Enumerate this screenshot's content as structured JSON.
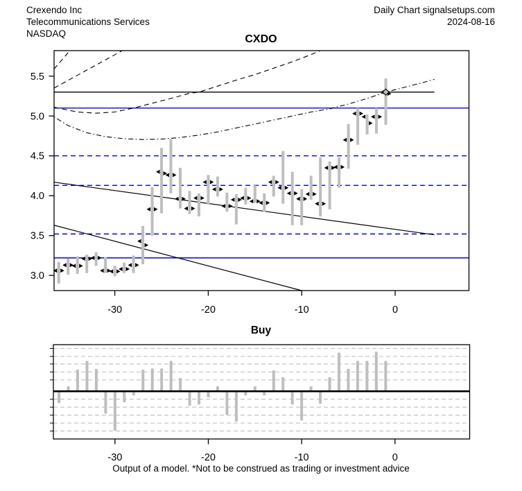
{
  "header": {
    "company": "Crexendo Inc",
    "sector": "Telecommunications Services",
    "exchange": "NASDAQ",
    "chart_type": "Daily Chart signalsetups.com",
    "date": "2024-08-16"
  },
  "footer": {
    "caption": "Output of a model. *Not to be construed as trading or investment advice"
  },
  "colors": {
    "black": "#000000",
    "blue": "#0000ee",
    "bar_gray": "#bebebe",
    "grid_gray": "#c4c4c4"
  },
  "chart_data": [
    {
      "type": "ohlc-bar",
      "title": "CXDO",
      "xlabel": "",
      "ylabel": "",
      "xlim": [
        -36.5,
        7.9
      ],
      "ylim": [
        2.81,
        5.82
      ],
      "xticks": [
        -30,
        -20,
        -10,
        0
      ],
      "yticks": [
        "3.0",
        "3.5",
        "4.0",
        "4.5",
        "5.0",
        "5.5"
      ],
      "ytick_values": [
        3.0,
        3.5,
        4.0,
        4.5,
        5.0,
        5.5
      ],
      "bar_fields": [
        "x",
        "open",
        "high",
        "low",
        "close"
      ],
      "bars": [
        [
          -36,
          3.06,
          3.17,
          2.9,
          3.06
        ],
        [
          -35,
          3.13,
          3.21,
          3.01,
          3.13
        ],
        [
          -34,
          3.12,
          3.24,
          3.02,
          3.12
        ],
        [
          -33,
          3.21,
          3.26,
          3.03,
          3.21
        ],
        [
          -32,
          3.22,
          3.29,
          3.12,
          3.22
        ],
        [
          -31,
          3.06,
          3.23,
          3.03,
          3.06
        ],
        [
          -30,
          3.05,
          3.12,
          2.99,
          3.05
        ],
        [
          -29,
          3.08,
          3.16,
          3.03,
          3.08
        ],
        [
          -28,
          3.13,
          3.25,
          3.03,
          3.13
        ],
        [
          -27,
          3.43,
          3.62,
          3.14,
          3.38
        ],
        [
          -26,
          3.83,
          4.11,
          3.5,
          3.83
        ],
        [
          -25,
          4.3,
          4.6,
          3.78,
          4.28
        ],
        [
          -24,
          4.26,
          4.71,
          4.03,
          4.26
        ],
        [
          -23,
          3.96,
          4.35,
          3.84,
          3.96
        ],
        [
          -22,
          3.84,
          4.06,
          3.77,
          3.84
        ],
        [
          -21,
          3.97,
          4.03,
          3.74,
          3.97
        ],
        [
          -20,
          4.17,
          4.26,
          3.89,
          4.17
        ],
        [
          -19,
          4.08,
          4.24,
          3.99,
          4.08
        ],
        [
          -18,
          3.87,
          4.04,
          3.8,
          3.87
        ],
        [
          -17,
          3.95,
          4.02,
          3.64,
          3.95
        ],
        [
          -16,
          3.97,
          4.1,
          3.89,
          3.97
        ],
        [
          -15,
          3.93,
          4.13,
          3.91,
          3.93
        ],
        [
          -14,
          3.91,
          4.03,
          3.8,
          3.91
        ],
        [
          -13,
          4.17,
          4.25,
          3.99,
          4.17
        ],
        [
          -12,
          4.1,
          4.56,
          3.9,
          4.1
        ],
        [
          -11,
          4.03,
          4.3,
          3.63,
          4.03
        ],
        [
          -10,
          3.96,
          4.08,
          3.63,
          3.96
        ],
        [
          -9,
          4.02,
          4.25,
          3.95,
          4.02
        ],
        [
          -8,
          3.9,
          4.48,
          3.74,
          3.9
        ],
        [
          -7,
          4.35,
          4.43,
          3.83,
          4.35
        ],
        [
          -6,
          4.36,
          4.48,
          4.1,
          4.36
        ],
        [
          -5,
          4.7,
          4.9,
          4.34,
          4.7
        ],
        [
          -4,
          5.03,
          5.1,
          4.64,
          5.03
        ],
        [
          -3,
          4.99,
          5.02,
          4.77,
          4.91
        ],
        [
          -2,
          4.99,
          5.1,
          4.78,
          4.99
        ],
        [
          -1,
          5.3,
          5.47,
          4.89,
          5.28
        ]
      ],
      "marker": {
        "x": -1,
        "price": 5.3,
        "shape": "diamond"
      },
      "h_lines": [
        {
          "price": 5.3,
          "style": "solid",
          "color": "black",
          "x_end": 4.2
        },
        {
          "price": 5.1,
          "style": "solid",
          "color": "blue"
        },
        {
          "price": 3.22,
          "style": "solid",
          "color": "blue"
        },
        {
          "price": 4.5,
          "style": "dashed",
          "color": "blue"
        },
        {
          "price": 4.13,
          "style": "dashed",
          "color": "blue"
        },
        {
          "price": 3.52,
          "style": "dashed",
          "color": "blue"
        }
      ],
      "trend_lines": [
        {
          "x1": -36.5,
          "y1": 4.17,
          "x2": 4.2,
          "y2": 3.51,
          "style": "solid"
        },
        {
          "x1": -36.5,
          "y1": 3.63,
          "x2": -10.0,
          "y2": 2.81,
          "style": "solid"
        }
      ],
      "curves": [
        {
          "style": "dashed",
          "points": [
            [
              -36.5,
              5.11
            ],
            [
              -34,
              5.05
            ],
            [
              -32,
              5.035
            ],
            [
              -30,
              5.05
            ],
            [
              -28,
              5.1
            ],
            [
              -26,
              5.16
            ],
            [
              -24,
              5.22
            ],
            [
              -22,
              5.285
            ],
            [
              -21,
              5.3
            ],
            [
              -19,
              5.375
            ],
            [
              -17,
              5.45
            ],
            [
              -15,
              5.52
            ],
            [
              -13,
              5.6
            ],
            [
              -11,
              5.68
            ],
            [
              -9,
              5.77
            ],
            [
              -8,
              5.82
            ]
          ]
        },
        {
          "style": "dashed",
          "points": [
            [
              -36.5,
              5.35
            ],
            [
              -29.2,
              5.82
            ]
          ]
        },
        {
          "style": "dashed",
          "points": [
            [
              -36.5,
              5.59
            ],
            [
              -34.8,
              5.82
            ]
          ]
        },
        {
          "style": "dashdot",
          "points": [
            [
              -36.5,
              4.99
            ],
            [
              -35,
              4.88
            ],
            [
              -33,
              4.79
            ],
            [
              -31,
              4.74
            ],
            [
              -29,
              4.715
            ],
            [
              -27,
              4.705
            ],
            [
              -25,
              4.71
            ],
            [
              -23,
              4.73
            ],
            [
              -21,
              4.76
            ],
            [
              -19,
              4.8
            ],
            [
              -17,
              4.85
            ],
            [
              -15,
              4.9
            ],
            [
              -13,
              4.95
            ],
            [
              -11,
              5.0
            ],
            [
              -9,
              5.05
            ],
            [
              -7,
              5.09
            ],
            [
              -5,
              5.15
            ],
            [
              -3,
              5.22
            ],
            [
              -1,
              5.3
            ],
            [
              1,
              5.36
            ],
            [
              3,
              5.42
            ],
            [
              4.2,
              5.46
            ]
          ]
        }
      ]
    },
    {
      "type": "bar",
      "title": "Buy",
      "xlabel": "",
      "ylabel": "",
      "xlim": [
        -36.6,
        8.0
      ],
      "ylim": [
        -1.26,
        1.23
      ],
      "xticks": [
        -30,
        -20,
        -10,
        0
      ],
      "x": [
        -36,
        -35,
        -34,
        -33,
        -32,
        -31,
        -30,
        -29,
        -28,
        -27,
        -26,
        -25,
        -24,
        -23,
        -22,
        -21,
        -20,
        -19,
        -18,
        -17,
        -16,
        -15,
        -14,
        -13,
        -12,
        -11,
        -10,
        -9,
        -8,
        -7,
        -6,
        -5,
        -4,
        -3,
        -2,
        -1
      ],
      "values": [
        -0.31,
        0.13,
        0.57,
        0.8,
        0.59,
        -0.59,
        -1.04,
        -0.29,
        -0.11,
        0.57,
        0.6,
        0.6,
        0.8,
        0.35,
        -0.38,
        -0.35,
        -0.16,
        0.13,
        -0.62,
        -0.8,
        -0.11,
        0.13,
        -0.11,
        0.55,
        0.37,
        -0.35,
        -0.77,
        0.13,
        -0.33,
        0.37,
        1.02,
        0.59,
        0.8,
        0.8,
        1.04,
        0.8
      ],
      "gridlines": [
        1.13,
        0.92,
        0.72,
        0.51,
        0.3,
        -0.21,
        -0.42,
        -0.63,
        -0.84,
        -1.05
      ],
      "zero_line": true,
      "grid": "dashed-horizontal",
      "legend": "none"
    }
  ]
}
